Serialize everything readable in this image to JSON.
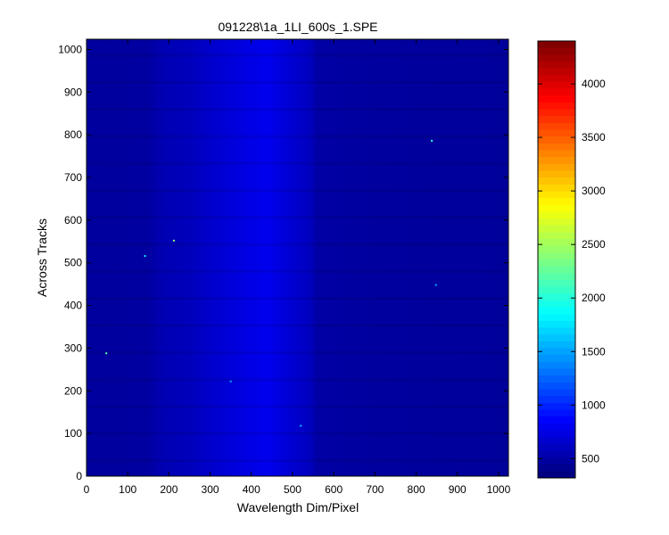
{
  "chart_data": {
    "type": "heatmap",
    "title": "091228\\1a_1LI_600s_1.SPE",
    "xlabel": "Wavelength Dim/Pixel",
    "ylabel": "Across Tracks",
    "xlim": [
      0,
      1024
    ],
    "ylim": [
      0,
      1024
    ],
    "x_ticks": [
      0,
      100,
      200,
      300,
      400,
      500,
      600,
      700,
      800,
      900,
      1000
    ],
    "y_ticks": [
      0,
      100,
      200,
      300,
      400,
      500,
      600,
      700,
      800,
      900,
      1000
    ],
    "colorbar": {
      "colormap": "jet",
      "clim": [
        320,
        4400
      ],
      "ticks": [
        500,
        1000,
        1500,
        2000,
        2500,
        3000,
        3500,
        4000
      ]
    },
    "background_level": 450,
    "column_profile": [
      {
        "x": 0,
        "value": 440
      },
      {
        "x": 150,
        "value": 450
      },
      {
        "x": 180,
        "value": 520
      },
      {
        "x": 250,
        "value": 560
      },
      {
        "x": 300,
        "value": 620
      },
      {
        "x": 350,
        "value": 680
      },
      {
        "x": 440,
        "value": 760
      },
      {
        "x": 500,
        "value": 640
      },
      {
        "x": 540,
        "value": 580
      },
      {
        "x": 560,
        "value": 470
      },
      {
        "x": 700,
        "value": 440
      },
      {
        "x": 1024,
        "value": 430
      }
    ],
    "hot_pixels": [
      {
        "x": 48,
        "y": 288,
        "value": 2200
      },
      {
        "x": 142,
        "y": 516,
        "value": 1800
      },
      {
        "x": 212,
        "y": 552,
        "value": 2400
      },
      {
        "x": 350,
        "y": 222,
        "value": 1500
      },
      {
        "x": 520,
        "y": 118,
        "value": 1600
      },
      {
        "x": 838,
        "y": 786,
        "value": 2000
      },
      {
        "x": 848,
        "y": 448,
        "value": 1500
      }
    ]
  }
}
